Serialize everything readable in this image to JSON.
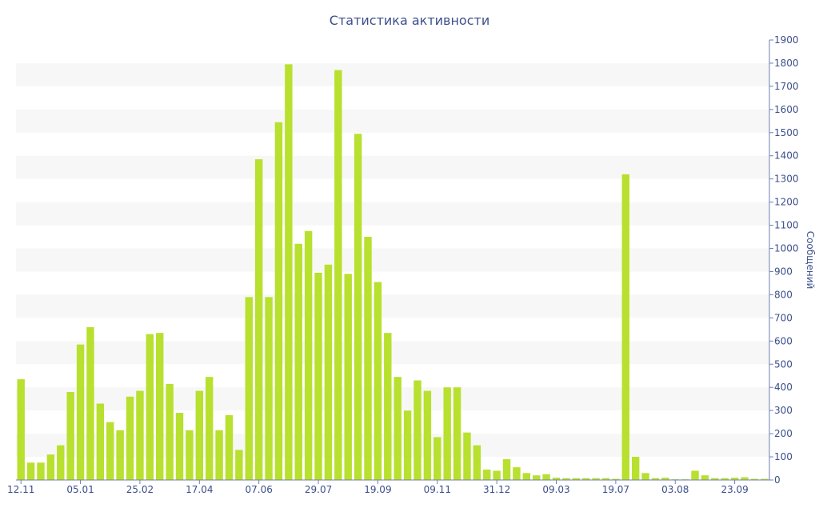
{
  "chart_data": {
    "type": "bar",
    "title": "Статистика активности",
    "ylabel": "Сообщений",
    "xlabel": "",
    "ylim": [
      0,
      1900
    ],
    "yticks": [
      0,
      100,
      200,
      300,
      400,
      500,
      600,
      700,
      800,
      900,
      1000,
      1100,
      1200,
      1300,
      1400,
      1500,
      1600,
      1700,
      1800,
      1900
    ],
    "grid": "alternating-horizontal-bands",
    "y_axis_side": "right",
    "x_tick_labels": [
      {
        "index": 0,
        "label": "12.11"
      },
      {
        "index": 6,
        "label": "05.01"
      },
      {
        "index": 12,
        "label": "25.02"
      },
      {
        "index": 18,
        "label": "17.04"
      },
      {
        "index": 24,
        "label": "07.06"
      },
      {
        "index": 30,
        "label": "29.07"
      },
      {
        "index": 36,
        "label": "19.09"
      },
      {
        "index": 42,
        "label": "09.11"
      },
      {
        "index": 48,
        "label": "31.12"
      },
      {
        "index": 54,
        "label": "09.03"
      },
      {
        "index": 60,
        "label": "19.07"
      },
      {
        "index": 66,
        "label": "03.08"
      },
      {
        "index": 72,
        "label": "23.09"
      }
    ],
    "values": [
      435,
      75,
      75,
      110,
      150,
      380,
      585,
      660,
      330,
      250,
      215,
      360,
      385,
      630,
      635,
      415,
      290,
      215,
      385,
      445,
      215,
      280,
      130,
      790,
      1385,
      790,
      1545,
      1795,
      1020,
      1075,
      895,
      930,
      1770,
      890,
      1495,
      1050,
      855,
      635,
      445,
      300,
      430,
      385,
      185,
      400,
      400,
      205,
      150,
      45,
      40,
      90,
      55,
      30,
      20,
      25,
      10,
      8,
      8,
      8,
      8,
      8,
      5,
      1320,
      100,
      30,
      8,
      10,
      3,
      3,
      40,
      20,
      8,
      8,
      10,
      12,
      5,
      5
    ],
    "bar_color": "#b8e02e",
    "text_color": "#3c4f8a"
  }
}
